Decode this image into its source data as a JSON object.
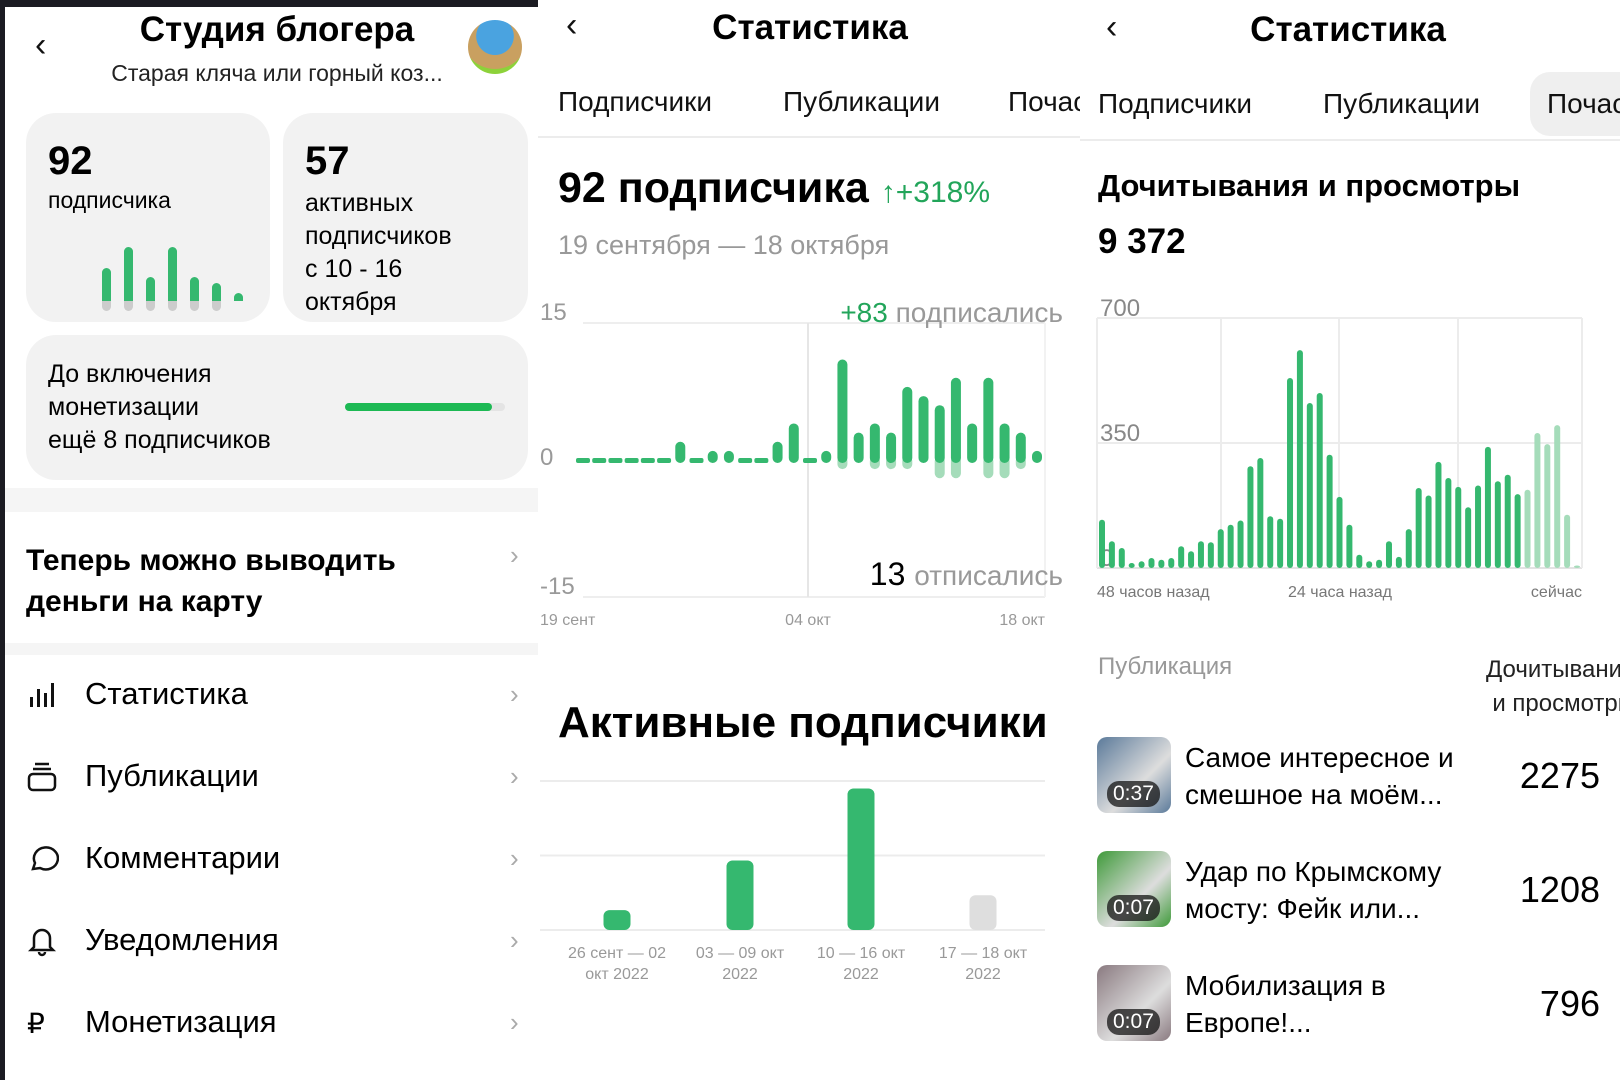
{
  "left": {
    "back_icon": "chevron-left-icon",
    "title": "Студия блогера",
    "subtitle": "Старая кляча или горный коз...",
    "subscribers_card": {
      "value": "92",
      "label": "подписчика",
      "mini_bars": [
        0.55,
        0.9,
        0.4,
        0.9,
        0.4,
        0.3,
        0.1
      ]
    },
    "active_card": {
      "value": "57",
      "label_lines": [
        "активных",
        "подписчиков",
        "с 10 - 16",
        "октября"
      ]
    },
    "monetization": {
      "lines": [
        "До включения",
        "монетизации",
        "ещё 8 подписчиков"
      ],
      "progress_percent": 92
    },
    "promo": {
      "lines": [
        "Теперь можно выводить",
        "деньги на карту"
      ]
    },
    "menu": [
      {
        "label": "Статистика",
        "icon": "bar-chart-icon"
      },
      {
        "label": "Публикации",
        "icon": "stack-icon"
      },
      {
        "label": "Комментарии",
        "icon": "comment-icon"
      },
      {
        "label": "Уведомления",
        "icon": "bell-icon"
      },
      {
        "label": "Монетизация",
        "icon": "ruble-icon"
      }
    ]
  },
  "middle": {
    "title": "Статистика",
    "tabs": [
      "Подписчики",
      "Публикации",
      "Почас"
    ],
    "heading": "92 подписчика",
    "growth": "↑+318%",
    "date_range": "19 сентября — 18 октября",
    "subscribed_count": "+83",
    "subscribed_label": "подписались",
    "unsubscribed_count": "13",
    "unsubscribed_label": "отписались",
    "active_heading": "Активные подписчики"
  },
  "right": {
    "title": "Статистика",
    "tabs": [
      "Подписчики",
      "Публикации",
      "Почас"
    ],
    "heading": "Дочитывания и просмотры",
    "total": "9 372",
    "table": {
      "col_publication": "Публикация",
      "col_views_lines": [
        "Дочитывания",
        "и просмотры"
      ],
      "rows": [
        {
          "duration": "0:37",
          "title_lines": [
            "Самое интересное и",
            "смешное на моём..."
          ],
          "value": "2275",
          "thumb_color": "#5b7a9a"
        },
        {
          "duration": "0:07",
          "title_lines": [
            "Удар по Крымскому",
            "мосту: Фейк или..."
          ],
          "value": "1208",
          "thumb_color": "#3f9a3a"
        },
        {
          "duration": "0:07",
          "title_lines": [
            "Мобилизация в",
            "Европе!..."
          ],
          "value": "796",
          "thumb_color": "#8a7a80"
        }
      ]
    }
  },
  "colors": {
    "green": "#35b86f",
    "light_green": "#a5dcba",
    "gray_bar": "#dedede",
    "accent_text": "#22a55a"
  },
  "chart_data": [
    {
      "type": "bar",
      "title": "",
      "ylim": [
        -15,
        15
      ],
      "yticks": [
        "15",
        "0",
        "-15"
      ],
      "xticks": [
        "19 сент",
        "04 окт",
        "18 окт"
      ],
      "subscribed": [
        0,
        0,
        0,
        0,
        0,
        0,
        2,
        0,
        1,
        1,
        0,
        0,
        2,
        4,
        0,
        1,
        11,
        3,
        4,
        3,
        8,
        7,
        6,
        9,
        4,
        9,
        4,
        3,
        1
      ],
      "unsubscribed": [
        0,
        0,
        0,
        0,
        0,
        0,
        0,
        0,
        0,
        0,
        0,
        0,
        0,
        0,
        0,
        0,
        1,
        0,
        1,
        1,
        1,
        0,
        2,
        2,
        0,
        2,
        2,
        1,
        0
      ]
    },
    {
      "type": "bar",
      "title": "",
      "ylim": [
        0,
        60
      ],
      "categories": [
        [
          "26 сент — 02",
          "окт 2022"
        ],
        [
          "03 — 09 окт",
          "2022"
        ],
        [
          "10 — 16 окт",
          "2022"
        ],
        [
          "17 — 18 окт",
          "2022"
        ]
      ],
      "values": [
        8,
        28,
        57,
        14
      ],
      "incomplete_last": true
    },
    {
      "type": "bar",
      "title": "",
      "ylim": [
        0,
        700
      ],
      "yticks": [
        "700",
        "350",
        "0"
      ],
      "xticks": [
        "48 часов назад",
        "24 часа назад",
        "сейчас"
      ],
      "values": [
        135,
        75,
        56,
        14,
        19,
        28,
        23,
        28,
        61,
        47,
        75,
        72,
        109,
        121,
        133,
        285,
        308,
        145,
        138,
        532,
        610,
        462,
        490,
        317,
        199,
        121,
        37,
        19,
        23,
        75,
        31,
        109,
        224,
        203,
        297,
        252,
        227,
        170,
        231,
        339,
        243,
        261,
        207,
        219,
        378,
        347,
        400,
        149,
        7
      ],
      "partial_from_index": 43
    }
  ]
}
